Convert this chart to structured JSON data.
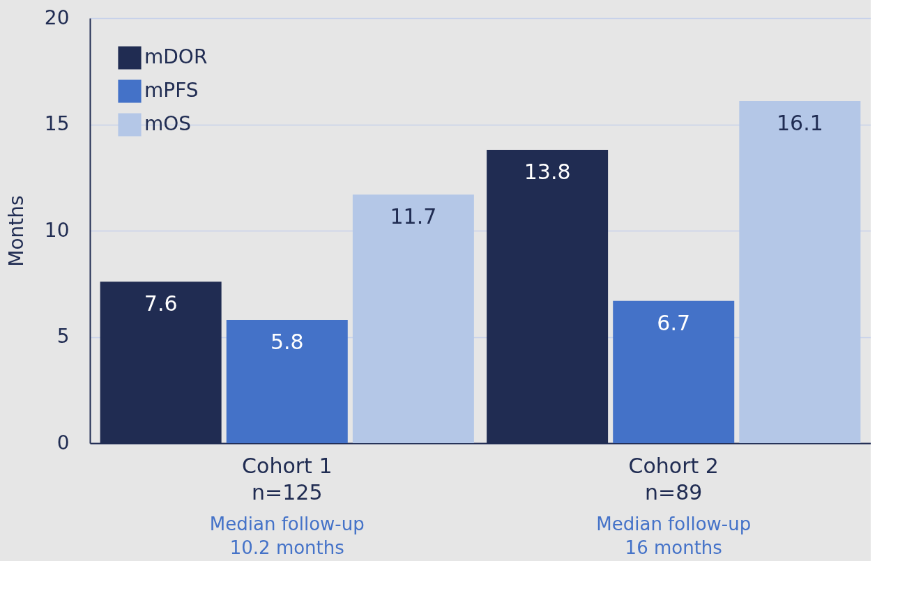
{
  "chart_data": {
    "type": "bar",
    "ylabel": "Months",
    "categories": [
      "Cohort 1\nn=125",
      "Cohort 2\nn=89"
    ],
    "series": [
      {
        "name": "mDOR",
        "color": "#202c52",
        "values": [
          7.6,
          13.8
        ]
      },
      {
        "name": "mPFS",
        "color": "#4472c8",
        "values": [
          5.8,
          6.7
        ]
      },
      {
        "name": "mOS",
        "color": "#b4c7e7",
        "values": [
          11.7,
          16.1
        ]
      }
    ],
    "ylim": [
      0,
      20
    ],
    "yticks": [
      0,
      5,
      10,
      15,
      20
    ],
    "grid": "y",
    "legend": "top left",
    "data_labels": true,
    "annotations": [
      "Median follow-up\n10.2 months",
      "Median follow-up\n16 months"
    ]
  }
}
